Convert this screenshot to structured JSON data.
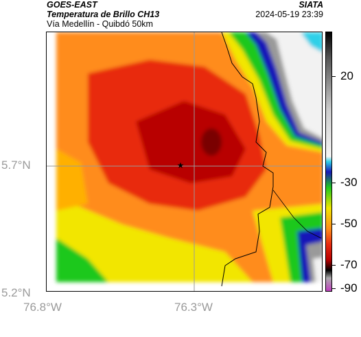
{
  "header": {
    "satellite": "GOES-EAST",
    "product": "Temperatura de Brillo CH13",
    "route": "Vía Medellín - Quibdó 50km",
    "agency": "SIATA",
    "timestamp": "2024-05-19 23:39"
  },
  "axes": {
    "lat_ticks": [
      "5.7°N",
      "5.2°N"
    ],
    "lon_ticks": [
      "76.8°W",
      "76.3°W"
    ]
  },
  "colorbar": {
    "labels": [
      "20",
      "-30",
      "-50",
      "-70",
      "-90"
    ],
    "colors": {
      "white": "#f2f2f2",
      "gray": "#9a9a9a",
      "cyan": "#2fd0e8",
      "blue": "#1818b8",
      "green": "#1ec81e",
      "yellow": "#f2e600",
      "orange": "#ff8c1a",
      "red": "#e82a10",
      "dark_red": "#b80000",
      "black": "#000000",
      "magenta": "#c040c0"
    }
  },
  "map": {
    "marker": "star-icon",
    "features": [
      "department-border",
      "coastline"
    ]
  }
}
